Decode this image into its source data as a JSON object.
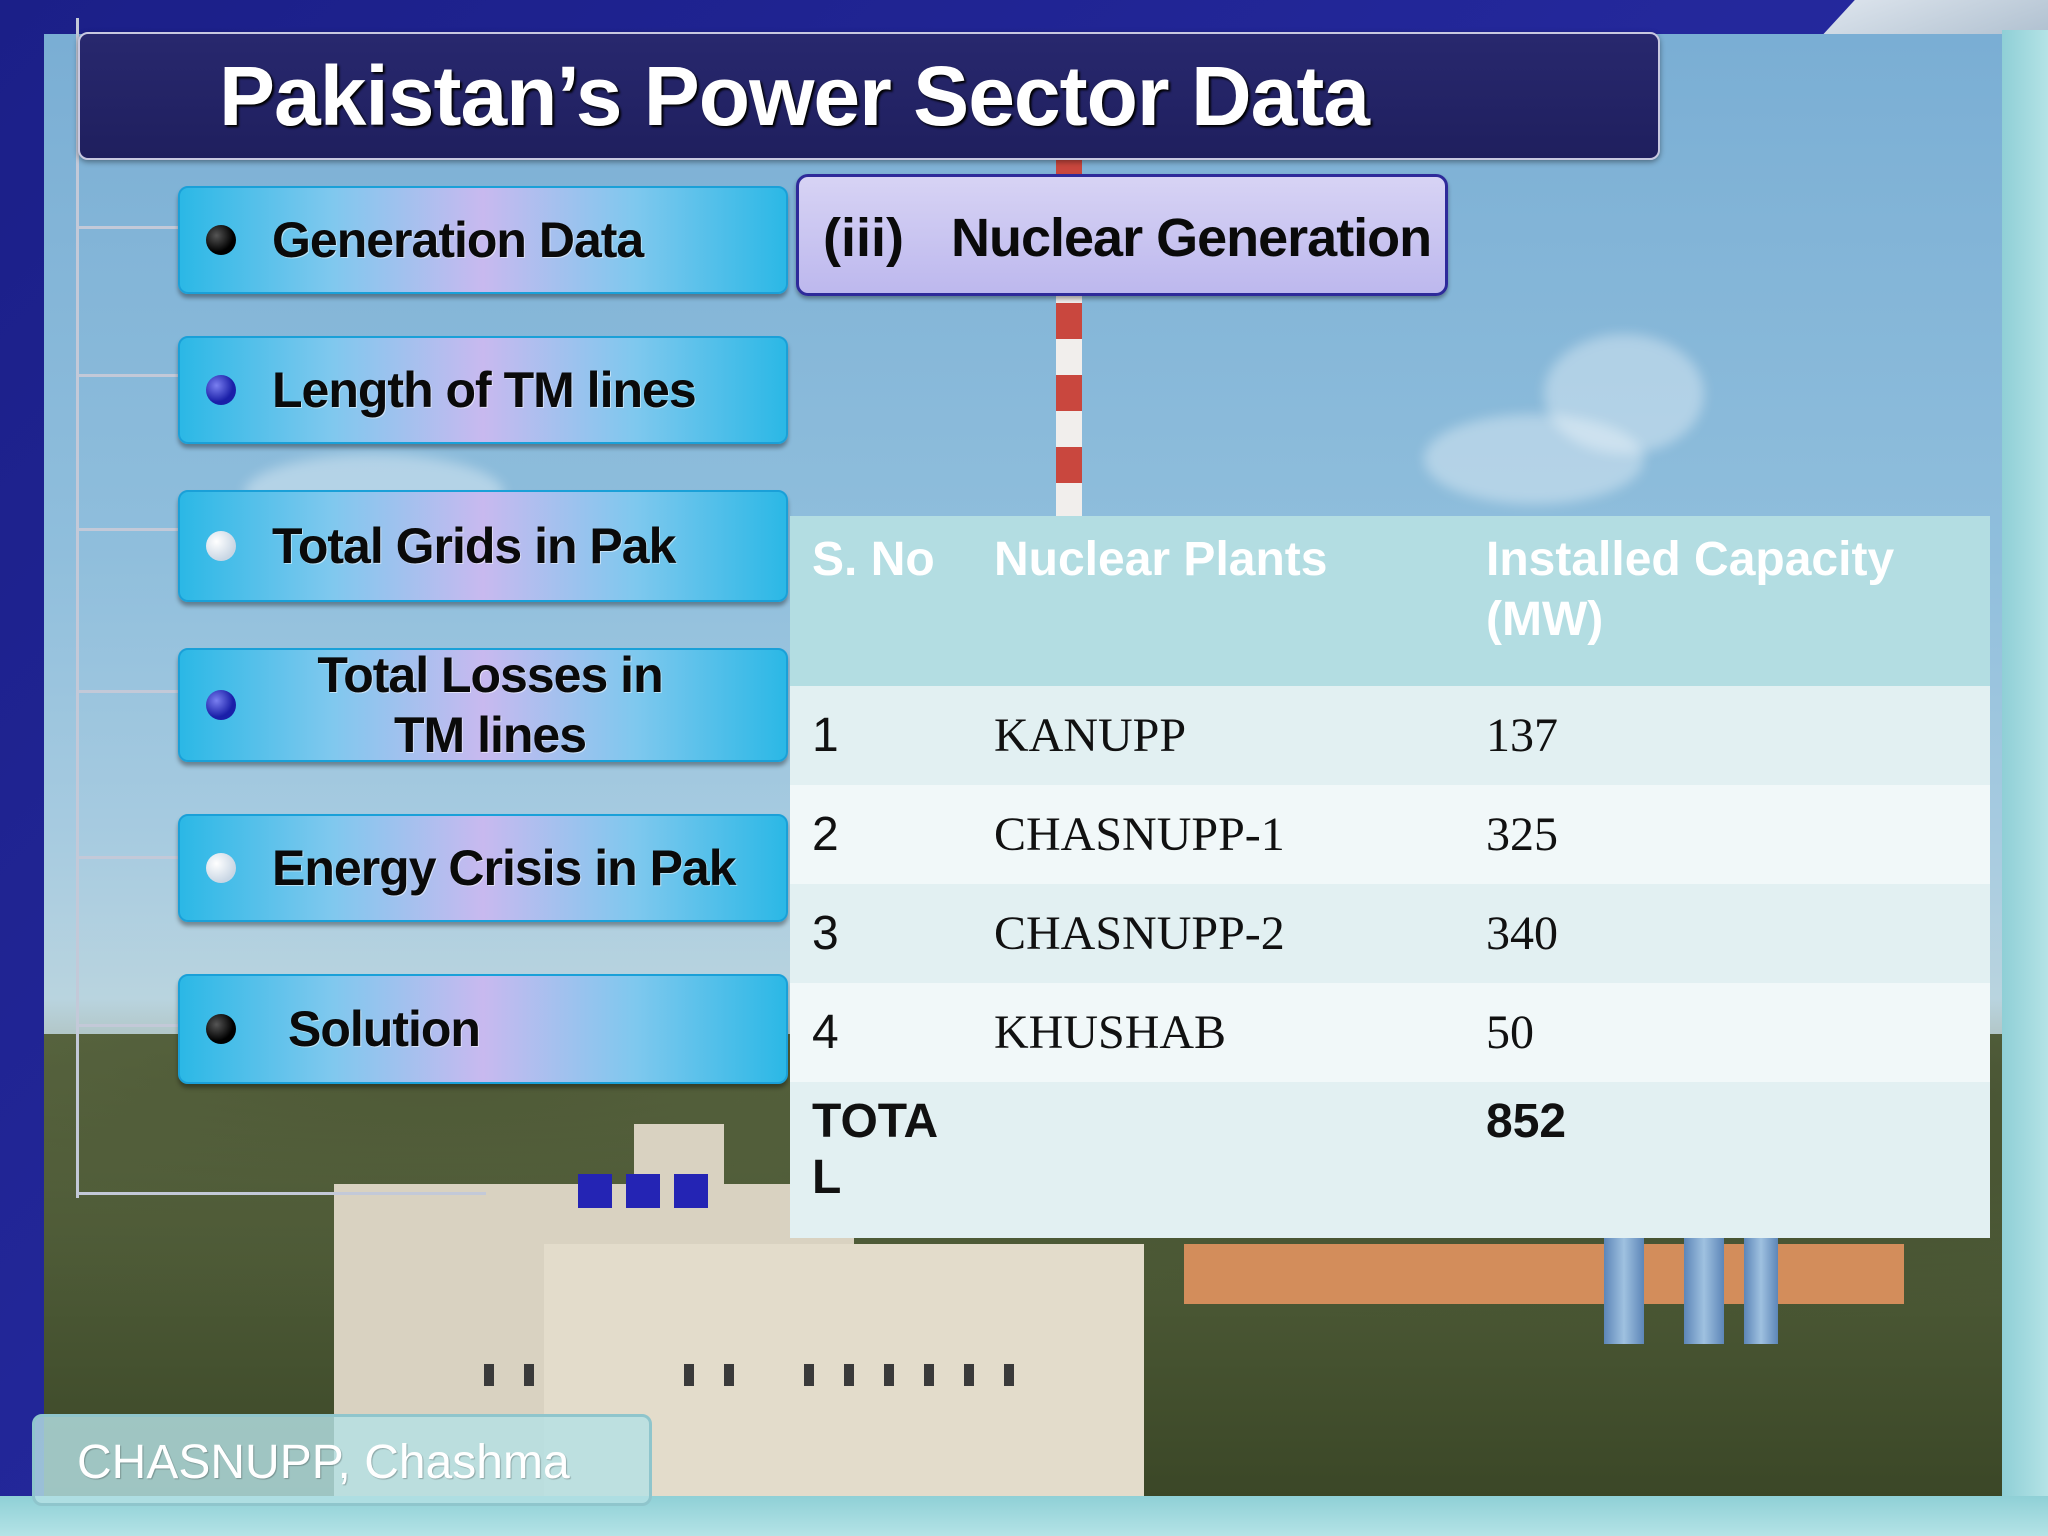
{
  "title": "Pakistan’s Power Sector Data",
  "menu": {
    "items": [
      {
        "label": "Generation Data",
        "bullet": "black"
      },
      {
        "label": "Length of TM lines",
        "bullet": "blue"
      },
      {
        "label": "Total Grids in Pak",
        "bullet": "white"
      },
      {
        "label": "Total Losses in TM lines",
        "bullet": "blue"
      },
      {
        "label": "Energy Crisis in Pak",
        "bullet": "white"
      },
      {
        "label": "Solution",
        "bullet": "black"
      }
    ]
  },
  "section": {
    "number": "(iii)",
    "title": "Nuclear Generation"
  },
  "table": {
    "headers": [
      "S. No",
      "Nuclear Plants",
      "Installed Capacity (MW)"
    ],
    "rows": [
      [
        "1",
        "KANUPP",
        "137"
      ],
      [
        "2",
        "CHASNUPP-1",
        "325"
      ],
      [
        "3",
        "CHASNUPP-2",
        "340"
      ],
      [
        "4",
        "KHUSHAB",
        "50"
      ]
    ],
    "total": {
      "label": "TOTAL",
      "value": "852"
    }
  },
  "caption": "CHASNUPP, Chashma",
  "colors": {
    "frame": "#1c1f8c",
    "title_bar": "#22226a",
    "menu_button": "#2bb8e6",
    "table_header": "#b3dde2",
    "table_row": "#e2f0f2"
  }
}
